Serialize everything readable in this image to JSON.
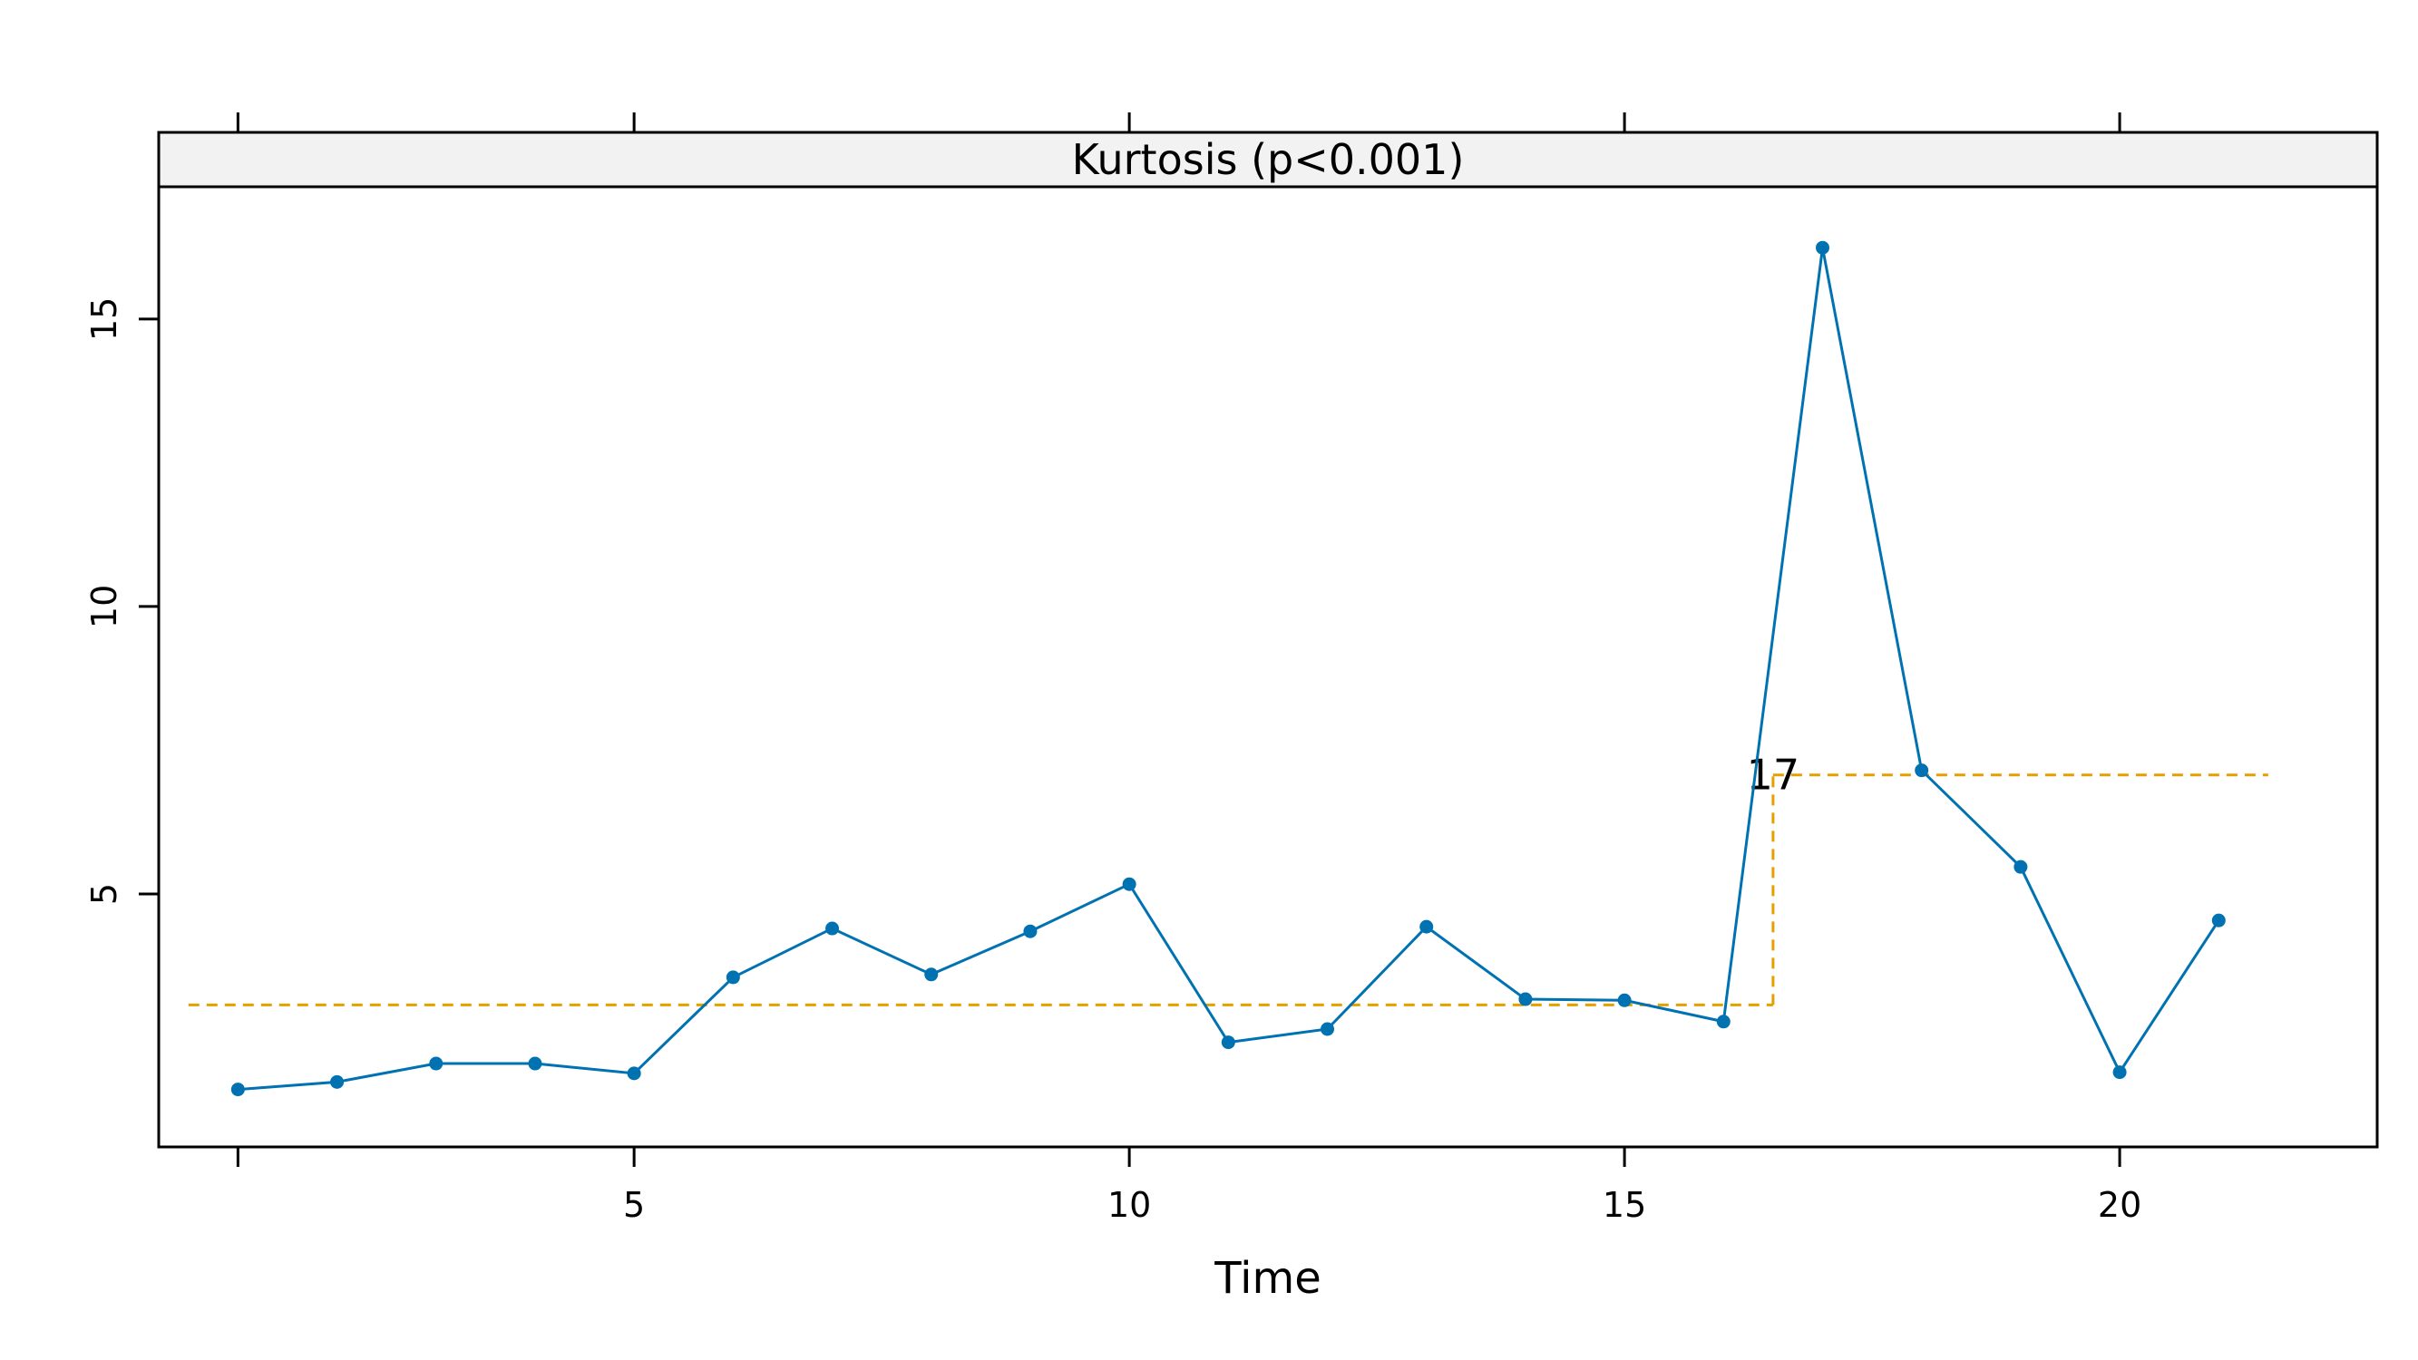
{
  "chart_data": {
    "type": "line",
    "title": "Kurtosis (p<0.001)",
    "xlabel": "Time",
    "ylabel": "",
    "xlim": [
      0.2,
      22.6
    ],
    "ylim": [
      0.6,
      17.3
    ],
    "xticks": [
      5,
      10,
      15,
      20
    ],
    "xticks_minor_extra": [
      1
    ],
    "yticks": [
      5,
      10,
      15
    ],
    "grid": false,
    "series": [
      {
        "x": [
          1,
          2,
          3,
          4,
          5,
          6,
          7,
          8,
          9,
          10,
          11,
          12,
          13,
          14,
          15,
          16,
          17,
          18,
          19,
          20,
          21
        ],
        "values": [
          1.6,
          1.73,
          2.05,
          2.05,
          1.88,
          3.55,
          4.4,
          3.6,
          4.35,
          5.17,
          2.42,
          2.65,
          4.43,
          3.17,
          3.15,
          2.78,
          16.24,
          7.15,
          5.47,
          1.9,
          4.54
        ],
        "color": "#0072B2",
        "markers": true
      }
    ],
    "changepoint": {
      "label": "17",
      "x": 16.5,
      "color": "#E69F00",
      "segments": [
        {
          "x_start": 0.5,
          "x_end": 16.5,
          "y": 3.07
        },
        {
          "x_start": 16.5,
          "x_end": 21.5,
          "y": 7.07
        }
      ]
    }
  }
}
